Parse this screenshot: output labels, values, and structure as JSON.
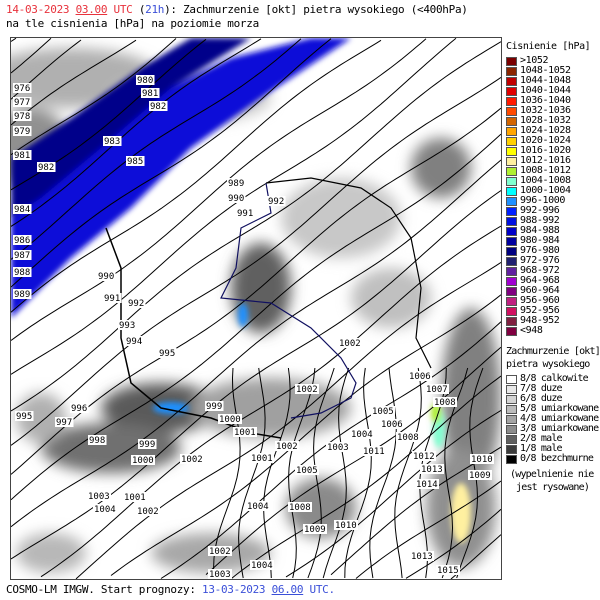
{
  "header": {
    "date": "14-03-2023",
    "hour": "03.00",
    "utc": "UTC",
    "lead_open": "(",
    "lead": "21h",
    "title_rest": "): Zachmurzenie [okt] pietra wysokiego (<400hPa)",
    "line2": "na tle cisnienia [hPa] na poziomie morza"
  },
  "footer": {
    "model": "COSMO-LM IMGW. Start prognozy:",
    "start_date": "13-03-2023",
    "start_hour": "06.00",
    "utc": "UTC."
  },
  "pressure_legend": {
    "title": "Cisnienie [hPa]",
    "items": [
      {
        "label": ">1052",
        "color": "#7a0000"
      },
      {
        "label": "1048-1052",
        "color": "#8b2500"
      },
      {
        "label": "1044-1048",
        "color": "#c00000"
      },
      {
        "label": "1040-1044",
        "color": "#e00000"
      },
      {
        "label": "1036-1040",
        "color": "#ff1a00"
      },
      {
        "label": "1032-1036",
        "color": "#ff4a00"
      },
      {
        "label": "1028-1032",
        "color": "#d26400"
      },
      {
        "label": "1024-1028",
        "color": "#ffa500"
      },
      {
        "label": "1020-1024",
        "color": "#ffd000"
      },
      {
        "label": "1016-1020",
        "color": "#ffff00"
      },
      {
        "label": "1012-1016",
        "color": "#fff0a0"
      },
      {
        "label": "1008-1012",
        "color": "#b0f030"
      },
      {
        "label": "1004-1008",
        "color": "#80ffd0"
      },
      {
        "label": "1000-1004",
        "color": "#00ffff"
      },
      {
        "label": "996-1000",
        "color": "#1e90ff"
      },
      {
        "label": "992-996",
        "color": "#0020ff"
      },
      {
        "label": "988-992",
        "color": "#0010e0"
      },
      {
        "label": "984-988",
        "color": "#0000c8"
      },
      {
        "label": "980-984",
        "color": "#0000a0"
      },
      {
        "label": "976-980",
        "color": "#000080"
      },
      {
        "label": "972-976",
        "color": "#202070"
      },
      {
        "label": "968-972",
        "color": "#6020a0"
      },
      {
        "label": "964-968",
        "color": "#a000d0"
      },
      {
        "label": "960-964",
        "color": "#800080"
      },
      {
        "label": "956-960",
        "color": "#c02080"
      },
      {
        "label": "952-956",
        "color": "#d01060"
      },
      {
        "label": "948-952",
        "color": "#802040"
      },
      {
        "label": "<948",
        "color": "#800040"
      }
    ]
  },
  "cloud_legend": {
    "title1": "Zachmurzenie [okt]",
    "title2": "pietra wysokiego",
    "items": [
      {
        "label": "8/8 calkowite",
        "color": "#ffffff"
      },
      {
        "label": "7/8 duze",
        "color": "#e8e8e8"
      },
      {
        "label": "6/8 duze",
        "color": "#d4d4d4"
      },
      {
        "label": "5/8 umiarkowane",
        "color": "#bcbcbc"
      },
      {
        "label": "4/8 umiarkowane",
        "color": "#a4a4a4"
      },
      {
        "label": "3/8 umiarkowane",
        "color": "#8c8c8c"
      },
      {
        "label": "2/8 male",
        "color": "#606060"
      },
      {
        "label": "1/8 male",
        "color": "#3c3c3c"
      },
      {
        "label": "0/8 bezchmurne",
        "color": "#000000"
      }
    ],
    "note1": "(wypelnienie nie",
    "note2": "jest rysowane)"
  },
  "isobar_labels": [
    "976",
    "977",
    "978",
    "979",
    "981",
    "982",
    "980",
    "981",
    "982",
    "983",
    "985",
    "984",
    "986",
    "987",
    "988",
    "989",
    "989",
    "990",
    "992",
    "991",
    "990",
    "991",
    "992",
    "993",
    "994",
    "995",
    "996",
    "997",
    "995",
    "998",
    "999",
    "1000",
    "1002",
    "999",
    "1000",
    "1001",
    "1001",
    "1002",
    "1003",
    "1004",
    "1001",
    "1002",
    "1002",
    "1004",
    "1003",
    "1004",
    "1008",
    "1009",
    "1010",
    "1005",
    "1002",
    "1002",
    "1006",
    "1007",
    "1008",
    "1005",
    "1006",
    "1004",
    "1003",
    "1008",
    "1011",
    "1012",
    "1013",
    "1014",
    "1010",
    "1009",
    "1013",
    "1015"
  ]
}
